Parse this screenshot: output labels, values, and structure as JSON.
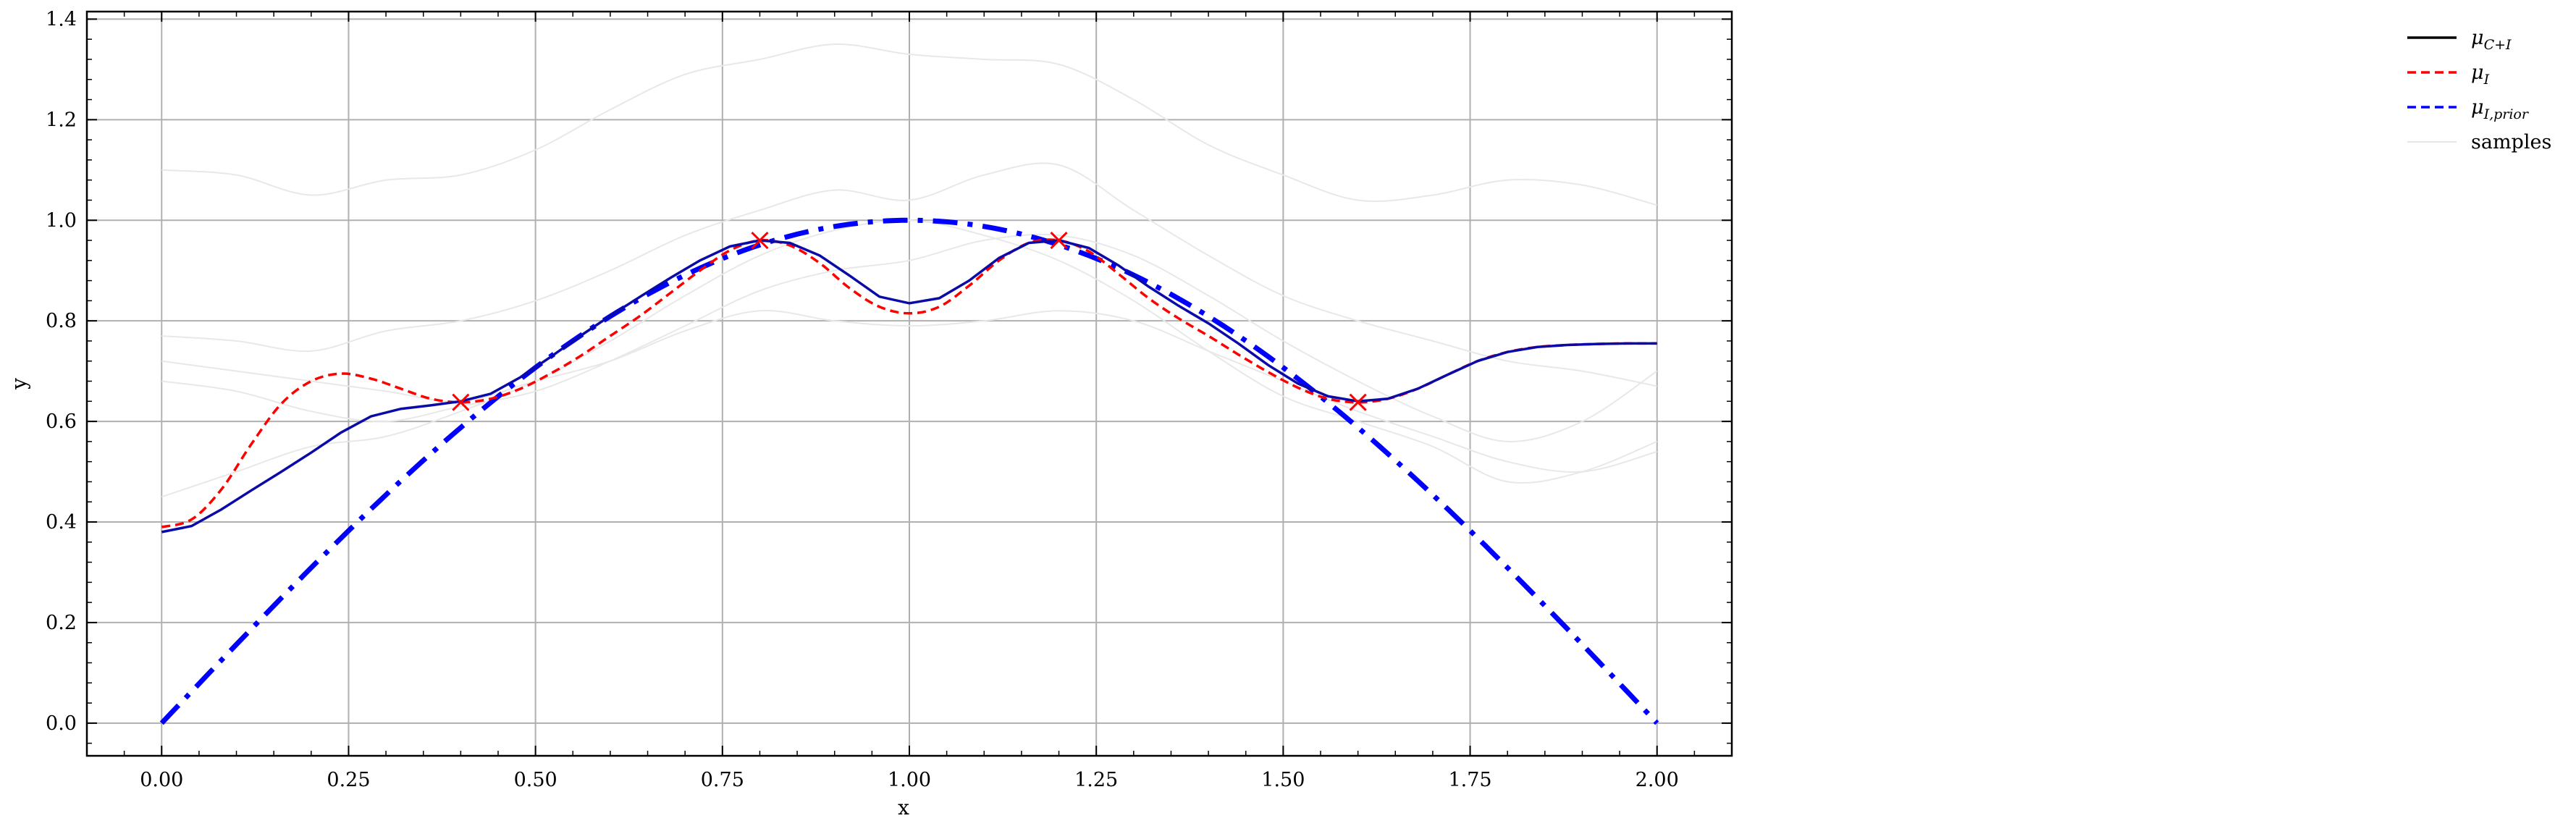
{
  "chart_data": {
    "type": "line",
    "title": "",
    "xlabel": "x",
    "ylabel": "y",
    "xlim": [
      -0.1,
      2.1
    ],
    "ylim": [
      -0.065,
      1.415
    ],
    "grid": true,
    "legend_position": "outside-right",
    "x_ticks": [
      {
        "value": 0.0,
        "label": "0.00"
      },
      {
        "value": 0.25,
        "label": "0.25"
      },
      {
        "value": 0.5,
        "label": "0.50"
      },
      {
        "value": 0.75,
        "label": "0.75"
      },
      {
        "value": 1.0,
        "label": "1.00"
      },
      {
        "value": 1.25,
        "label": "1.25"
      },
      {
        "value": 1.5,
        "label": "1.50"
      },
      {
        "value": 1.75,
        "label": "1.75"
      },
      {
        "value": 2.0,
        "label": "2.00"
      }
    ],
    "y_ticks": [
      {
        "value": 0.0,
        "label": "0.0"
      },
      {
        "value": 0.2,
        "label": "0.2"
      },
      {
        "value": 0.4,
        "label": "0.4"
      },
      {
        "value": 0.6,
        "label": "0.6"
      },
      {
        "value": 0.8,
        "label": "0.8"
      },
      {
        "value": 1.0,
        "label": "1.0"
      },
      {
        "value": 1.2,
        "label": "1.2"
      },
      {
        "value": 1.4,
        "label": "1.4"
      }
    ],
    "legend": [
      {
        "key": "mu_CI",
        "base": "μ",
        "sub": "C+I",
        "color": "#000000",
        "dash": "solid"
      },
      {
        "key": "mu_I",
        "base": "μ",
        "sub": "I",
        "color": "#ff0000",
        "dash": "dashed"
      },
      {
        "key": "mu_prior",
        "base": "μ",
        "sub": "I,prior",
        "color": "#0000ff",
        "dash": "dashed"
      },
      {
        "key": "samples",
        "base": "samples",
        "sub": "",
        "color": "#e6e6e6",
        "dash": "solid"
      }
    ],
    "series": [
      {
        "key": "mu_CI",
        "color": "#0a0aa8",
        "style": "solid",
        "x": [
          0.0,
          0.04,
          0.08,
          0.12,
          0.16,
          0.2,
          0.24,
          0.28,
          0.32,
          0.36,
          0.4,
          0.44,
          0.48,
          0.52,
          0.56,
          0.6,
          0.64,
          0.68,
          0.72,
          0.76,
          0.8,
          0.84,
          0.88,
          0.92,
          0.96,
          1.0,
          1.04,
          1.08,
          1.12,
          1.16,
          1.2,
          1.24,
          1.28,
          1.32,
          1.36,
          1.4,
          1.44,
          1.48,
          1.52,
          1.56,
          1.6,
          1.64,
          1.68,
          1.72,
          1.76,
          1.8,
          1.84,
          1.88,
          1.92,
          1.96,
          2.0
        ],
        "y": [
          0.38,
          0.392,
          0.425,
          0.463,
          0.5,
          0.538,
          0.578,
          0.61,
          0.625,
          0.632,
          0.64,
          0.655,
          0.688,
          0.728,
          0.77,
          0.81,
          0.848,
          0.885,
          0.92,
          0.948,
          0.96,
          0.955,
          0.93,
          0.89,
          0.848,
          0.835,
          0.845,
          0.88,
          0.925,
          0.955,
          0.96,
          0.945,
          0.91,
          0.868,
          0.83,
          0.795,
          0.755,
          0.712,
          0.675,
          0.65,
          0.64,
          0.645,
          0.665,
          0.693,
          0.72,
          0.738,
          0.748,
          0.752,
          0.754,
          0.755,
          0.755
        ]
      },
      {
        "key": "mu_I",
        "color": "#ff0000",
        "style": "dashed",
        "x": [
          0.0,
          0.04,
          0.08,
          0.12,
          0.16,
          0.2,
          0.24,
          0.28,
          0.32,
          0.36,
          0.4,
          0.44,
          0.48,
          0.52,
          0.56,
          0.6,
          0.64,
          0.68,
          0.72,
          0.76,
          0.8,
          0.84,
          0.88,
          0.92,
          0.96,
          1.0,
          1.04,
          1.08,
          1.12,
          1.16,
          1.2,
          1.24,
          1.28,
          1.32,
          1.36,
          1.4,
          1.44,
          1.48,
          1.52,
          1.56,
          1.6,
          1.64,
          1.68,
          1.72,
          1.76,
          1.8,
          1.84,
          1.88,
          1.92,
          1.96,
          2.0
        ],
        "y": [
          0.39,
          0.405,
          0.465,
          0.555,
          0.635,
          0.68,
          0.695,
          0.685,
          0.665,
          0.645,
          0.638,
          0.645,
          0.665,
          0.695,
          0.73,
          0.77,
          0.81,
          0.855,
          0.9,
          0.94,
          0.96,
          0.95,
          0.915,
          0.865,
          0.828,
          0.815,
          0.828,
          0.87,
          0.92,
          0.955,
          0.96,
          0.938,
          0.893,
          0.845,
          0.805,
          0.77,
          0.733,
          0.698,
          0.667,
          0.645,
          0.638,
          0.645,
          0.665,
          0.693,
          0.72,
          0.738,
          0.748,
          0.752,
          0.754,
          0.755,
          0.755
        ]
      },
      {
        "key": "mu_prior",
        "color": "#0000ff",
        "style": "dashdot",
        "function": "sin(pi*x/2)",
        "x_range": [
          0.0,
          2.0
        ]
      }
    ],
    "observations": [
      {
        "x": 0.4,
        "y": 0.638
      },
      {
        "x": 0.8,
        "y": 0.96
      },
      {
        "x": 1.2,
        "y": 0.96
      },
      {
        "x": 1.6,
        "y": 0.638
      }
    ],
    "samples": [
      {
        "x": [
          0.0,
          0.1,
          0.2,
          0.3,
          0.4,
          0.5,
          0.6,
          0.7,
          0.8,
          0.9,
          1.0,
          1.1,
          1.2,
          1.3,
          1.4,
          1.5,
          1.6,
          1.7,
          1.8,
          1.9,
          2.0
        ],
        "y": [
          1.1,
          1.09,
          1.05,
          1.08,
          1.09,
          1.14,
          1.22,
          1.29,
          1.32,
          1.35,
          1.33,
          1.32,
          1.31,
          1.24,
          1.15,
          1.09,
          1.04,
          1.05,
          1.08,
          1.07,
          1.03
        ]
      },
      {
        "x": [
          0.0,
          0.1,
          0.2,
          0.3,
          0.4,
          0.5,
          0.6,
          0.7,
          0.8,
          0.9,
          1.0,
          1.1,
          1.2,
          1.3,
          1.4,
          1.5,
          1.6,
          1.7,
          1.8,
          1.9,
          2.0
        ],
        "y": [
          0.77,
          0.76,
          0.74,
          0.78,
          0.8,
          0.84,
          0.9,
          0.97,
          1.02,
          1.06,
          1.04,
          1.09,
          1.11,
          1.02,
          0.93,
          0.85,
          0.8,
          0.76,
          0.72,
          0.7,
          0.67
        ]
      },
      {
        "x": [
          0.0,
          0.1,
          0.2,
          0.3,
          0.4,
          0.5,
          0.6,
          0.7,
          0.8,
          0.9,
          1.0,
          1.1,
          1.2,
          1.3,
          1.4,
          1.5,
          1.6,
          1.7,
          1.8,
          1.9,
          2.0
        ],
        "y": [
          0.72,
          0.7,
          0.68,
          0.66,
          0.64,
          0.68,
          0.72,
          0.78,
          0.82,
          0.8,
          0.79,
          0.8,
          0.82,
          0.8,
          0.74,
          0.68,
          0.62,
          0.57,
          0.52,
          0.5,
          0.54
        ]
      },
      {
        "x": [
          0.0,
          0.1,
          0.2,
          0.3,
          0.4,
          0.5,
          0.6,
          0.7,
          0.8,
          0.9,
          1.0,
          1.1,
          1.2,
          1.3,
          1.4,
          1.5,
          1.6,
          1.7,
          1.8,
          1.9,
          2.0
        ],
        "y": [
          0.68,
          0.66,
          0.62,
          0.6,
          0.63,
          0.66,
          0.72,
          0.79,
          0.86,
          0.9,
          0.92,
          0.96,
          0.97,
          0.93,
          0.85,
          0.76,
          0.68,
          0.61,
          0.56,
          0.6,
          0.7
        ]
      },
      {
        "x": [
          0.0,
          0.1,
          0.2,
          0.3,
          0.4,
          0.5,
          0.6,
          0.7,
          0.8,
          0.9,
          1.0,
          1.1,
          1.2,
          1.3,
          1.4,
          1.5,
          1.6,
          1.7,
          1.8,
          1.9,
          2.0
        ],
        "y": [
          0.45,
          0.5,
          0.55,
          0.57,
          0.62,
          0.68,
          0.76,
          0.85,
          0.93,
          0.98,
          1.0,
          0.97,
          0.92,
          0.84,
          0.74,
          0.65,
          0.6,
          0.55,
          0.48,
          0.5,
          0.56
        ]
      }
    ]
  }
}
